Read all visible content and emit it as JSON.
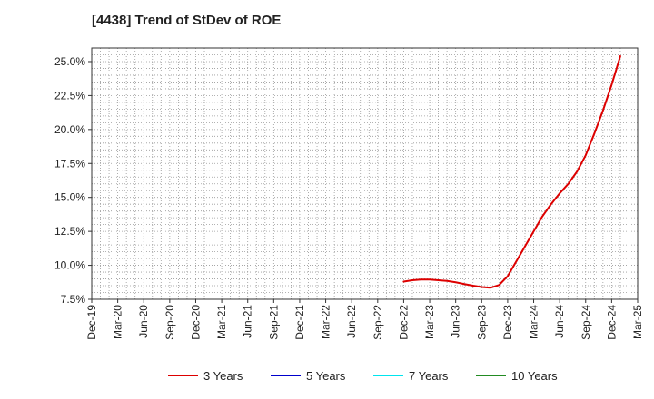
{
  "chart_data": {
    "type": "line",
    "title": "[4438]  Trend of StDev of ROE",
    "xlabel": "",
    "ylabel": "",
    "x_ticks": [
      "Dec-19",
      "Mar-20",
      "Jun-20",
      "Sep-20",
      "Dec-20",
      "Mar-21",
      "Jun-21",
      "Sep-21",
      "Dec-21",
      "Mar-22",
      "Jun-22",
      "Sep-22",
      "Dec-22",
      "Mar-23",
      "Jun-23",
      "Sep-23",
      "Dec-23",
      "Mar-24",
      "Jun-24",
      "Sep-24",
      "Dec-24",
      "Mar-25"
    ],
    "y_ticks": [
      "7.5%",
      "10.0%",
      "12.5%",
      "15.0%",
      "17.5%",
      "20.0%",
      "22.5%",
      "25.0%"
    ],
    "y_tick_values": [
      7.5,
      10.0,
      12.5,
      15.0,
      17.5,
      20.0,
      22.5,
      25.0
    ],
    "ylim": [
      7.5,
      26.0
    ],
    "grid": true,
    "legend_position": "bottom",
    "series": [
      {
        "name": "3 Years",
        "color": "#dd0000",
        "points": [
          [
            "Dec-22",
            8.8
          ],
          [
            "Jan-23",
            8.9
          ],
          [
            "Feb-23",
            8.95
          ],
          [
            "Mar-23",
            8.95
          ],
          [
            "Apr-23",
            8.9
          ],
          [
            "May-23",
            8.85
          ],
          [
            "Jun-23",
            8.75
          ],
          [
            "Jul-23",
            8.62
          ],
          [
            "Aug-23",
            8.5
          ],
          [
            "Sep-23",
            8.4
          ],
          [
            "Oct-23",
            8.35
          ],
          [
            "Nov-23",
            8.55
          ],
          [
            "Dec-23",
            9.2
          ],
          [
            "Jan-24",
            10.3
          ],
          [
            "Feb-24",
            11.4
          ],
          [
            "Mar-24",
            12.5
          ],
          [
            "Apr-24",
            13.6
          ],
          [
            "May-24",
            14.5
          ],
          [
            "Jun-24",
            15.3
          ],
          [
            "Jul-24",
            16.0
          ],
          [
            "Aug-24",
            16.9
          ],
          [
            "Sep-24",
            18.1
          ],
          [
            "Oct-24",
            19.7
          ],
          [
            "Nov-24",
            21.4
          ],
          [
            "Dec-24",
            23.3
          ],
          [
            "Jan-25",
            25.4
          ]
        ]
      },
      {
        "name": "5 Years",
        "color": "#0000cc",
        "points": []
      },
      {
        "name": "7 Years",
        "color": "#00e5ee",
        "points": []
      },
      {
        "name": "10 Years",
        "color": "#228b22",
        "points": []
      }
    ]
  }
}
